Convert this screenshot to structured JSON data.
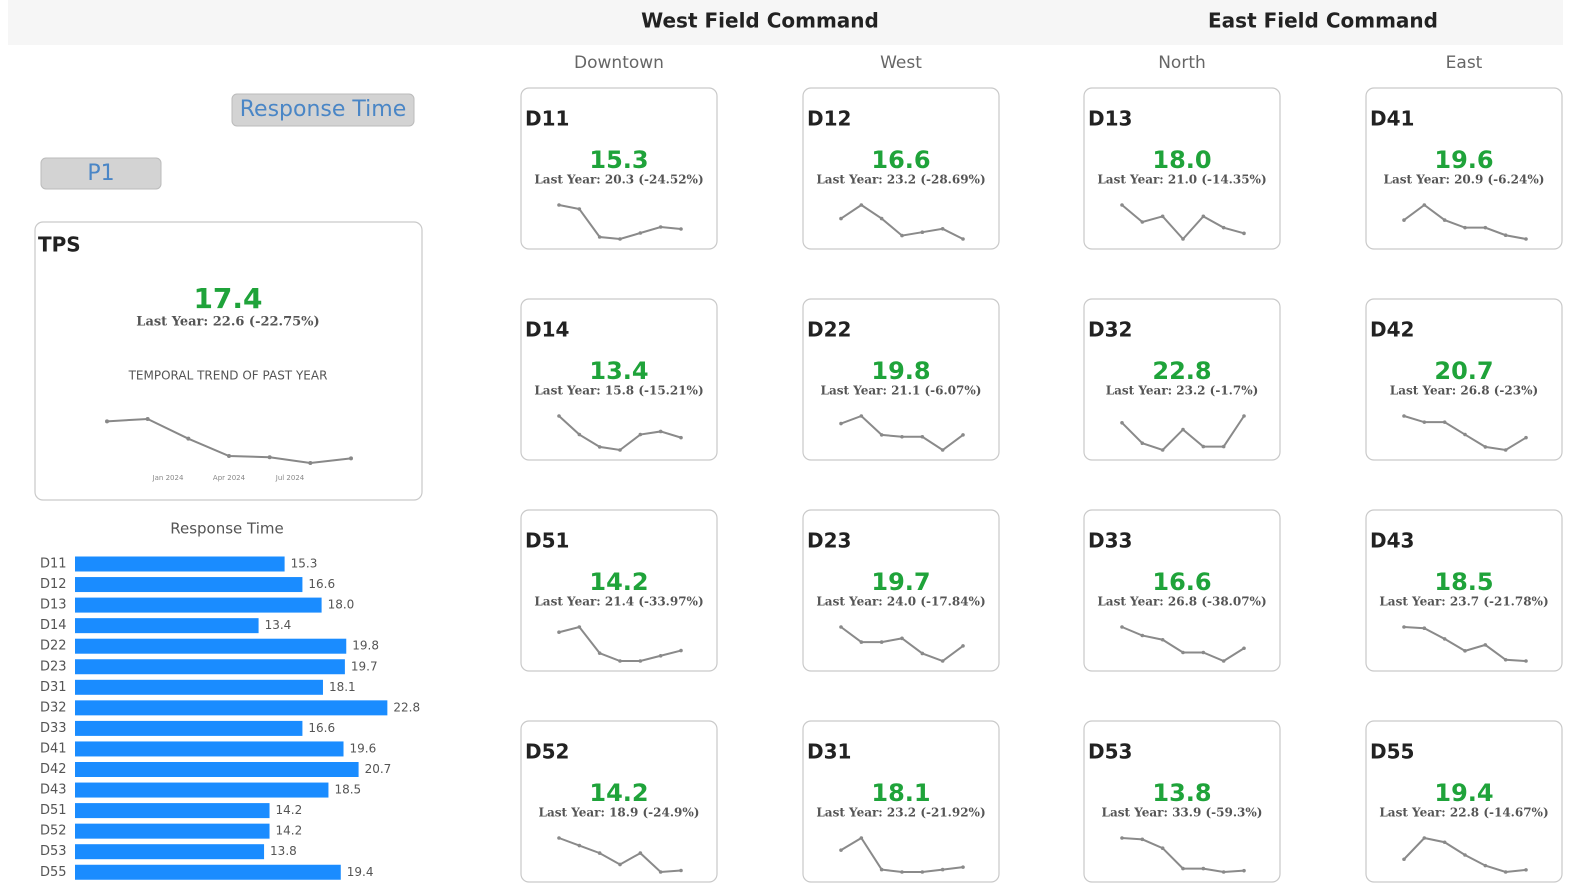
{
  "buttons": [
    "Response Time",
    "P1"
  ],
  "tps": {
    "title": "TPS",
    "value": "17.4",
    "last_year": "Last Year: 22.6 (-22.75%)"
  },
  "chart_data": [
    {
      "type": "line",
      "title": "TEMPORAL TREND OF PAST YEAR",
      "xtick_labels": [
        "Jan 2024",
        "Apr 2024",
        "Jul 2024"
      ],
      "values": [
        21.0,
        21.2,
        19.5,
        18.0,
        17.9,
        17.4,
        17.8
      ],
      "color": "#888888"
    },
    {
      "type": "bar",
      "title": "Response Time",
      "categories": [
        "D11",
        "D12",
        "D13",
        "D14",
        "D22",
        "D23",
        "D31",
        "D32",
        "D33",
        "D41",
        "D42",
        "D43",
        "D51",
        "D52",
        "D53",
        "D55"
      ],
      "values": [
        15.3,
        16.6,
        18.0,
        13.4,
        19.8,
        19.7,
        18.1,
        22.8,
        16.6,
        19.6,
        20.7,
        18.5,
        14.2,
        14.2,
        13.8,
        19.4
      ],
      "value_labels": [
        "15.3",
        "16.6",
        "18.0",
        "13.4",
        "19.8",
        "19.7",
        "18.1",
        "22.8",
        "16.6",
        "19.6",
        "20.7",
        "18.5",
        "14.2",
        "14.2",
        "13.8",
        "19.4"
      ],
      "color": "#1a8cff",
      "xlim": [
        0,
        30
      ]
    }
  ],
  "commands": [
    {
      "title": "West Field Command",
      "columns": [
        {
          "name": "Downtown",
          "cards": [
            {
              "title": "D11",
              "value": "15.3",
              "last_year": "Last Year: 20.3 (-24.52%)",
              "trend": [
                24,
                23,
                16,
                15.5,
                17,
                18.5,
                18
              ]
            },
            {
              "title": "D14",
              "value": "13.4",
              "last_year": "Last Year: 15.8 (-15.21%)",
              "trend": [
                20,
                17,
                15,
                14.5,
                17,
                17.5,
                16.5
              ]
            },
            {
              "title": "D51",
              "value": "14.2",
              "last_year": "Last Year: 21.4 (-33.97%)",
              "trend": [
                21,
                22,
                17,
                15.5,
                15.5,
                16.5,
                17.5
              ]
            },
            {
              "title": "D52",
              "value": "14.2",
              "last_year": "Last Year: 18.9 (-24.9%)",
              "trend": [
                20,
                19,
                18,
                16.5,
                18,
                15.5,
                15.7
              ]
            }
          ]
        },
        {
          "name": "West",
          "cards": [
            {
              "title": "D12",
              "value": "16.6",
              "last_year": "Last Year: 23.2 (-28.69%)",
              "trend": [
                21,
                23,
                21,
                18.5,
                19,
                19.5,
                18
              ]
            },
            {
              "title": "D22",
              "value": "19.8",
              "last_year": "Last Year: 21.1 (-6.07%)",
              "trend": [
                20,
                22,
                17,
                16.5,
                16.5,
                13,
                17
              ]
            },
            {
              "title": "D23",
              "value": "19.7",
              "last_year": "Last Year: 24.0 (-17.84%)",
              "trend": [
                24,
                20,
                20,
                21,
                17,
                15,
                19
              ]
            },
            {
              "title": "D31",
              "value": "18.1",
              "last_year": "Last Year: 23.2 (-21.92%)",
              "trend": [
                20,
                22.5,
                16,
                15.5,
                15.5,
                16,
                16.5
              ]
            }
          ]
        }
      ]
    },
    {
      "title": "East Field Command",
      "columns": [
        {
          "name": "North",
          "cards": [
            {
              "title": "D13",
              "value": "18.0",
              "last_year": "Last Year: 21.0 (-14.35%)",
              "trend": [
                23,
                20,
                21,
                17,
                21,
                19,
                18
              ]
            },
            {
              "title": "D32",
              "value": "22.8",
              "last_year": "Last Year: 23.2 (-1.7%)",
              "trend": [
                21,
                18,
                17,
                20,
                17.5,
                17.5,
                22
              ]
            },
            {
              "title": "D33",
              "value": "16.6",
              "last_year": "Last Year: 26.8 (-38.07%)",
              "trend": [
                20,
                19,
                18.5,
                17,
                17,
                16,
                17.5
              ]
            },
            {
              "title": "D53",
              "value": "13.8",
              "last_year": "Last Year: 33.9 (-59.3%)",
              "trend": [
                20,
                19.8,
                18.5,
                15.5,
                15.5,
                15,
                15.2
              ]
            }
          ]
        },
        {
          "name": "East",
          "cards": [
            {
              "title": "D41",
              "value": "19.6",
              "last_year": "Last Year: 20.9 (-6.24%)",
              "trend": [
                20,
                22,
                20,
                19,
                19,
                18,
                17.5
              ]
            },
            {
              "title": "D42",
              "value": "20.7",
              "last_year": "Last Year: 26.8 (-23%)",
              "trend": [
                22,
                21,
                21,
                19,
                17,
                16.5,
                18.5
              ]
            },
            {
              "title": "D43",
              "value": "18.5",
              "last_year": "Last Year: 23.7 (-21.78%)",
              "trend": [
                20,
                19.8,
                18,
                16,
                17,
                14.5,
                14.3
              ]
            },
            {
              "title": "D55",
              "value": "19.4",
              "last_year": "Last Year: 22.8 (-14.67%)",
              "trend": [
                17,
                22,
                21,
                18,
                15.5,
                14,
                14.5
              ]
            }
          ]
        }
      ]
    }
  ]
}
